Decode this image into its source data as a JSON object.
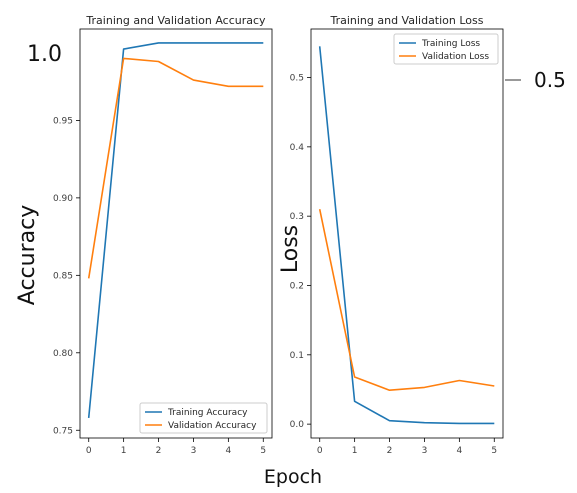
{
  "colors": {
    "training": "#1f77b4",
    "validation": "#ff7f0e",
    "axes": "#000000",
    "background": "#ffffff"
  },
  "annotations": {
    "accuracy_label": "Accuracy",
    "loss_label": "Loss",
    "epoch_label": "Epoch",
    "left_top_value": "1.0",
    "right_side_value": "0.5"
  },
  "chart_data": [
    {
      "type": "line",
      "title": "Training and Validation Accuracy",
      "xlabel": "Epoch",
      "ylabel": "Accuracy",
      "x": [
        0,
        1,
        2,
        3,
        4,
        5
      ],
      "xticks": [
        "0",
        "1",
        "2",
        "3",
        "4",
        "5"
      ],
      "yticks": [
        "0.75",
        "0.80",
        "0.85",
        "0.90",
        "0.95"
      ],
      "xlim": [
        -0.25,
        5.25
      ],
      "ylim": [
        0.745,
        1.009
      ],
      "grid": false,
      "legend_position": "lower right",
      "series": [
        {
          "name": "Training Accuracy",
          "color": "#1f77b4",
          "values": [
            0.758,
            0.996,
            1.0,
            1.0,
            1.0,
            1.0
          ]
        },
        {
          "name": "Validation Accuracy",
          "color": "#ff7f0e",
          "values": [
            0.848,
            0.99,
            0.988,
            0.976,
            0.972,
            0.972
          ]
        }
      ]
    },
    {
      "type": "line",
      "title": "Training and Validation Loss",
      "xlabel": "Epoch",
      "ylabel": "Loss",
      "x": [
        0,
        1,
        2,
        3,
        4,
        5
      ],
      "xticks": [
        "0",
        "1",
        "2",
        "3",
        "4",
        "5"
      ],
      "yticks": [
        "0.0",
        "0.1",
        "0.2",
        "0.3",
        "0.4",
        "0.5"
      ],
      "xlim": [
        -0.25,
        5.25
      ],
      "ylim": [
        -0.02,
        0.57
      ],
      "grid": false,
      "legend_position": "upper right",
      "series": [
        {
          "name": "Training Loss",
          "color": "#1f77b4",
          "values": [
            0.545,
            0.033,
            0.005,
            0.002,
            0.001,
            0.001
          ]
        },
        {
          "name": "Validation Loss",
          "color": "#ff7f0e",
          "values": [
            0.31,
            0.068,
            0.049,
            0.053,
            0.063,
            0.055
          ]
        }
      ]
    }
  ]
}
